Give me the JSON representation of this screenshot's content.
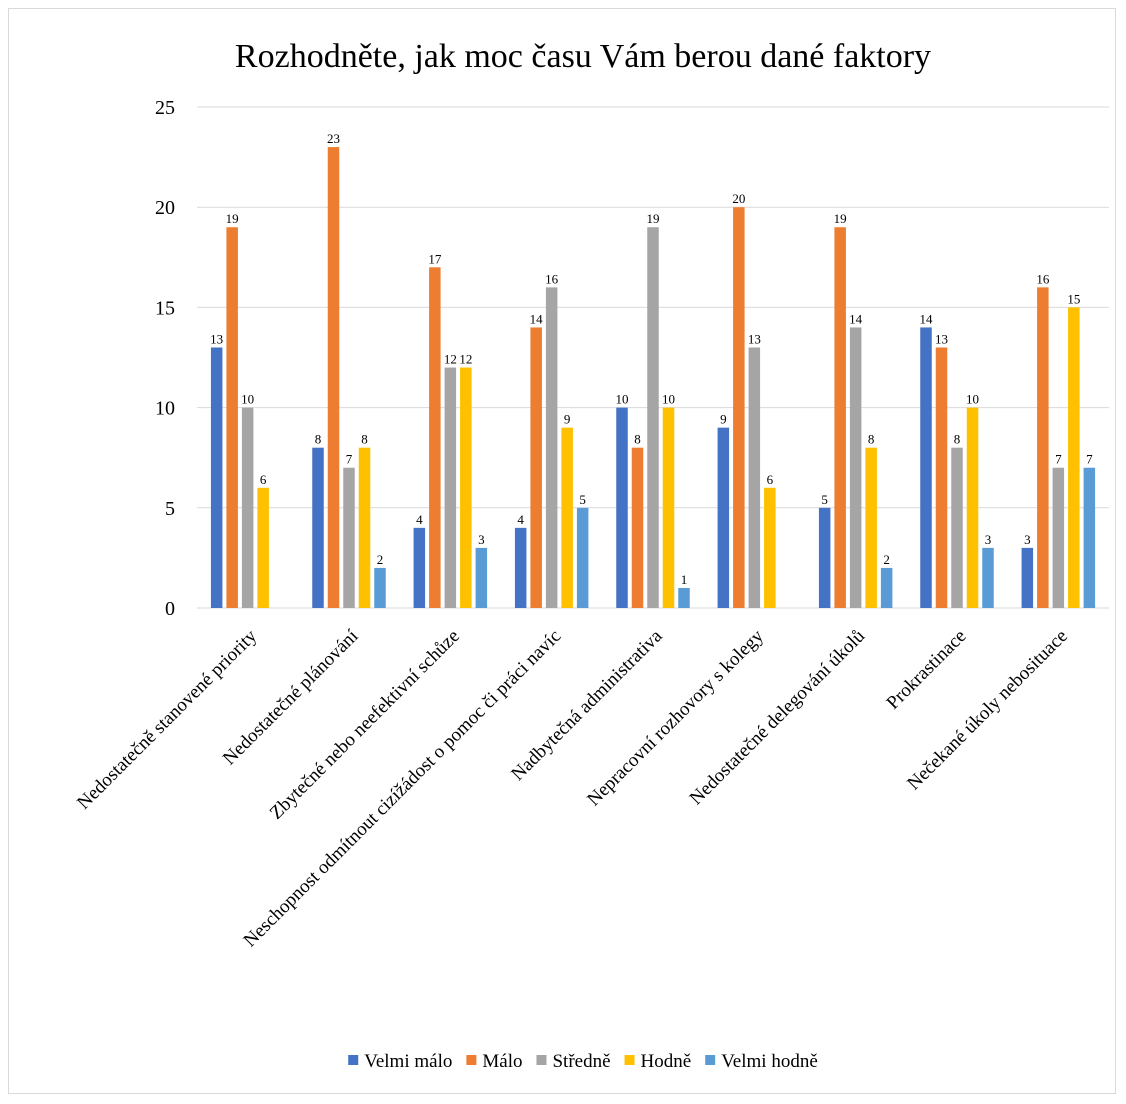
{
  "chart_data": {
    "type": "bar",
    "title": "Rozhodněte, jak moc času Vám berou dané faktory",
    "xlabel": "",
    "ylabel": "",
    "ylim": [
      0,
      25
    ],
    "yticks": [
      0,
      5,
      10,
      15,
      20,
      25
    ],
    "grid": true,
    "legend_position": "bottom",
    "categories": [
      "Nedostatečně stanovené priority",
      "Nedostatečné plánování",
      "Zbytečné nebo neefektivní schůze",
      "Neschopnost odmítnout cizížádost o pomoc či práci navíc",
      "Nadbytečná administrativa",
      "Nepracovní rozhovory s kolegy",
      "Nedostatečné delegování úkolů",
      "Prokrastinace",
      "Nečekané úkoly nebosituace"
    ],
    "series": [
      {
        "name": "Velmi málo",
        "color": "#4472c4",
        "values": [
          13,
          8,
          4,
          4,
          10,
          9,
          5,
          14,
          3
        ]
      },
      {
        "name": "Málo",
        "color": "#ed7d31",
        "values": [
          19,
          23,
          17,
          14,
          8,
          20,
          19,
          13,
          16
        ]
      },
      {
        "name": "Středně",
        "color": "#a5a5a5",
        "values": [
          10,
          7,
          12,
          16,
          19,
          13,
          14,
          8,
          7
        ]
      },
      {
        "name": "Hodně",
        "color": "#ffc000",
        "values": [
          6,
          8,
          12,
          9,
          10,
          6,
          8,
          10,
          15
        ]
      },
      {
        "name": "Velmi hodně",
        "color": "#5b9bd5",
        "values": [
          null,
          2,
          3,
          5,
          1,
          null,
          2,
          3,
          7
        ]
      }
    ]
  }
}
